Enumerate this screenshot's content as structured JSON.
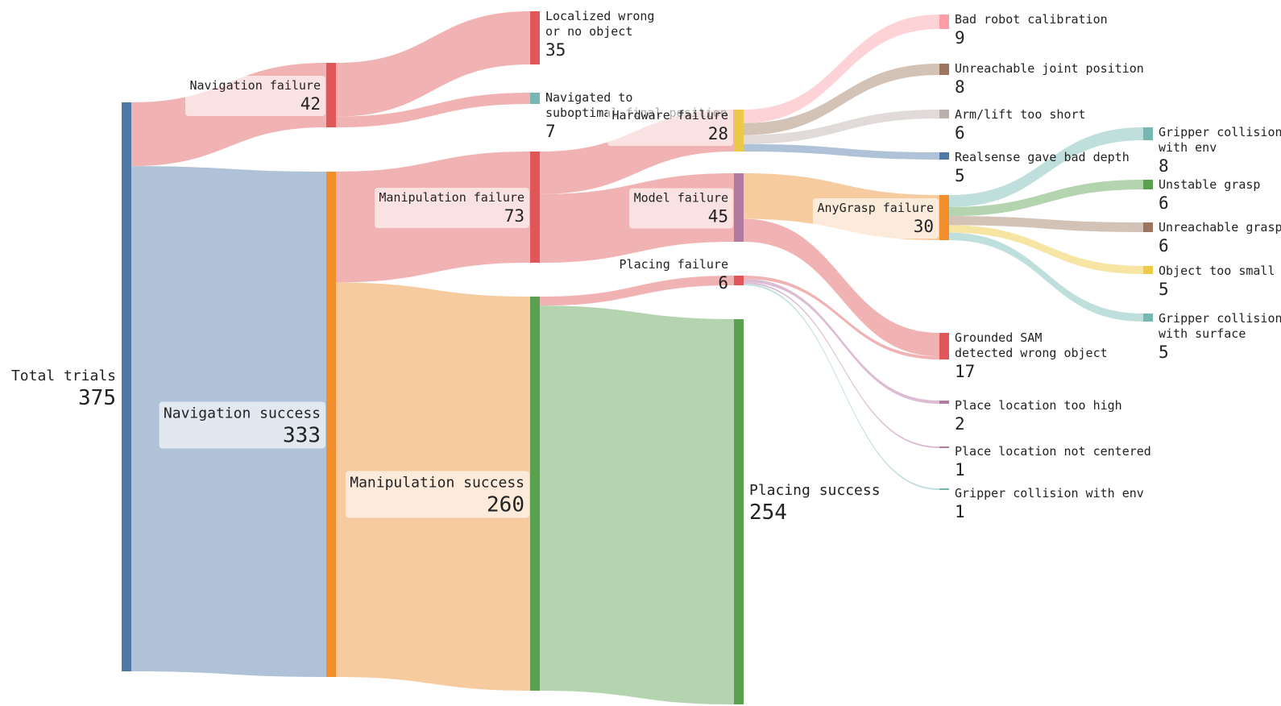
{
  "diagram": {
    "type": "sankey",
    "nodes": [
      {
        "id": "total",
        "name": "Total trials",
        "value": "375",
        "color": "#4e79a7"
      },
      {
        "id": "nav_fail",
        "name": "Navigation failure",
        "value": "42",
        "color": "#e15759"
      },
      {
        "id": "nav_succ",
        "name": "Navigation success",
        "value": "333",
        "color": "#f28e2b"
      },
      {
        "id": "loc_wrong",
        "name": "Localized wrong\nor no object",
        "value": "35",
        "color": "#e15759"
      },
      {
        "id": "nav_subopt",
        "name": "Navigated to\nsuboptimal final position",
        "value": "7",
        "color": "#76b7b2"
      },
      {
        "id": "manip_fail",
        "name": "Manipulation failure",
        "value": "73",
        "color": "#e15759"
      },
      {
        "id": "manip_succ",
        "name": "Manipulation success",
        "value": "260",
        "color": "#59a14f"
      },
      {
        "id": "hw_fail",
        "name": "Hardware failure",
        "value": "28",
        "color": "#edc948"
      },
      {
        "id": "model_fail",
        "name": "Model failure",
        "value": "45",
        "color": "#b07aa1"
      },
      {
        "id": "place_fail",
        "name": "Placing failure",
        "value": "6",
        "color": "#e15759"
      },
      {
        "id": "place_succ",
        "name": "Placing success",
        "value": "254",
        "color": "#59a14f"
      },
      {
        "id": "bad_calib",
        "name": "Bad robot calibration",
        "value": "9",
        "color": "#ff9da7"
      },
      {
        "id": "unreach_joint",
        "name": "Unreachable joint position",
        "value": "8",
        "color": "#9c755f"
      },
      {
        "id": "arm_short",
        "name": "Arm/lift too short",
        "value": "6",
        "color": "#bab0ac"
      },
      {
        "id": "realsense",
        "name": "Realsense gave bad depth",
        "value": "5",
        "color": "#4e79a7"
      },
      {
        "id": "anygrasp",
        "name": "AnyGrasp failure",
        "value": "30",
        "color": "#f28e2b"
      },
      {
        "id": "gsam",
        "name": "Grounded SAM\ndetected wrong object",
        "value": "17",
        "color": "#e15759"
      },
      {
        "id": "place_high",
        "name": "Place location too high",
        "value": "2",
        "color": "#b07aa1"
      },
      {
        "id": "place_center",
        "name": "Place location not centered",
        "value": "1",
        "color": "#b07aa1"
      },
      {
        "id": "grip_env_place",
        "name": "Gripper collision with env",
        "value": "1",
        "color": "#76b7b2"
      },
      {
        "id": "grip_env",
        "name": "Gripper collision\nwith env",
        "value": "8",
        "color": "#76b7b2"
      },
      {
        "id": "unstable",
        "name": "Unstable grasp",
        "value": "6",
        "color": "#59a14f"
      },
      {
        "id": "unreach_grasp",
        "name": "Unreachable grasp",
        "value": "6",
        "color": "#9c755f"
      },
      {
        "id": "obj_small",
        "name": "Object too small",
        "value": "5",
        "color": "#edc948"
      },
      {
        "id": "grip_surface",
        "name": "Gripper collision\nwith surface",
        "value": "5",
        "color": "#76b7b2"
      }
    ],
    "links": [
      {
        "source": "total",
        "target": "nav_fail",
        "value": 42,
        "color": "#f1b2b3"
      },
      {
        "source": "total",
        "target": "nav_succ",
        "value": 333,
        "color": "#b0c2d8"
      },
      {
        "source": "nav_fail",
        "target": "loc_wrong",
        "value": 35,
        "color": "#f1b2b3"
      },
      {
        "source": "nav_fail",
        "target": "nav_subopt",
        "value": 7,
        "color": "#f1b2b3"
      },
      {
        "source": "nav_succ",
        "target": "manip_fail",
        "value": 73,
        "color": "#f1b2b3"
      },
      {
        "source": "nav_succ",
        "target": "manip_succ",
        "value": 260,
        "color": "#f7cba0"
      },
      {
        "source": "manip_fail",
        "target": "hw_fail",
        "value": 28,
        "color": "#f1b2b3"
      },
      {
        "source": "manip_fail",
        "target": "model_fail",
        "value": 45,
        "color": "#f1b2b3"
      },
      {
        "source": "manip_succ",
        "target": "place_fail",
        "value": 6,
        "color": "#f1b2b3"
      },
      {
        "source": "manip_succ",
        "target": "place_succ",
        "value": 254,
        "color": "#b3d4ae"
      },
      {
        "source": "hw_fail",
        "target": "bad_calib",
        "value": 9,
        "color": "#fdd3d7"
      },
      {
        "source": "hw_fail",
        "target": "unreach_joint",
        "value": 8,
        "color": "#d3c2b6"
      },
      {
        "source": "hw_fail",
        "target": "arm_short",
        "value": 6,
        "color": "#e0dbd9"
      },
      {
        "source": "hw_fail",
        "target": "realsense",
        "value": 5,
        "color": "#b0c2d8"
      },
      {
        "source": "model_fail",
        "target": "anygrasp",
        "value": 30,
        "color": "#f7cba0"
      },
      {
        "source": "model_fail",
        "target": "gsam",
        "value": 15,
        "color": "#f1b2b3"
      },
      {
        "source": "place_fail",
        "target": "gsam",
        "value": 2,
        "color": "#f1b2b3"
      },
      {
        "source": "place_fail",
        "target": "place_high",
        "value": 2,
        "color": "#dbbcd2"
      },
      {
        "source": "place_fail",
        "target": "place_center",
        "value": 1,
        "color": "#dbbcd2"
      },
      {
        "source": "place_fail",
        "target": "grip_env_place",
        "value": 1,
        "color": "#bfdfdc"
      },
      {
        "source": "anygrasp",
        "target": "grip_env",
        "value": 8,
        "color": "#bfdfdc"
      },
      {
        "source": "anygrasp",
        "target": "unstable",
        "value": 6,
        "color": "#b3d4ae"
      },
      {
        "source": "anygrasp",
        "target": "unreach_grasp",
        "value": 6,
        "color": "#d3c2b6"
      },
      {
        "source": "anygrasp",
        "target": "obj_small",
        "value": 5,
        "color": "#f7e5a4"
      },
      {
        "source": "anygrasp",
        "target": "grip_surface",
        "value": 5,
        "color": "#bfdfdc"
      }
    ]
  }
}
